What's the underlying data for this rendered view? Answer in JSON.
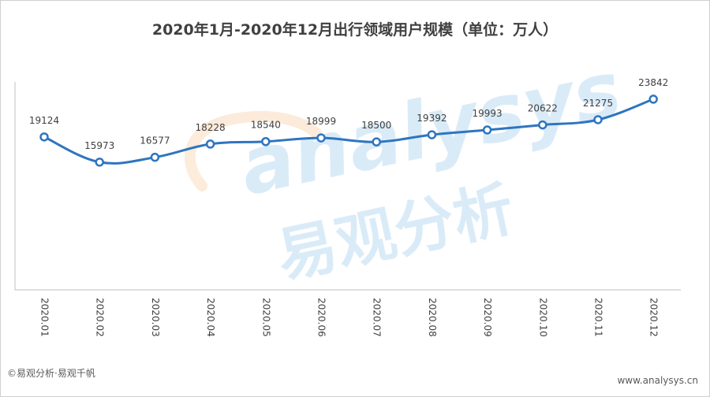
{
  "chart_data": {
    "type": "line",
    "title": "2020年1月-2020年12月出行领域用户规模（单位：万人）",
    "categories": [
      "2020.01",
      "2020.02",
      "2020.03",
      "2020.04",
      "2020.05",
      "2020.06",
      "2020.07",
      "2020.08",
      "2020.09",
      "2020.10",
      "2020.11",
      "2020.12"
    ],
    "series": [
      {
        "values": [
          19124,
          15973,
          16577,
          18228,
          18540,
          18999,
          18500,
          19392,
          19993,
          20622,
          21275,
          23842
        ]
      }
    ],
    "ylim": [
      0,
      26000
    ],
    "grid": false,
    "legend": "none",
    "line_color": "#2e75c0"
  },
  "watermark": {
    "latin": "analysys",
    "chinese": "易观分析",
    "blue": "#8fc2ea",
    "orange": "#f6c48f"
  },
  "footer": {
    "source": "©易观分析·易观千帆",
    "website": "www.analysys.cn"
  }
}
